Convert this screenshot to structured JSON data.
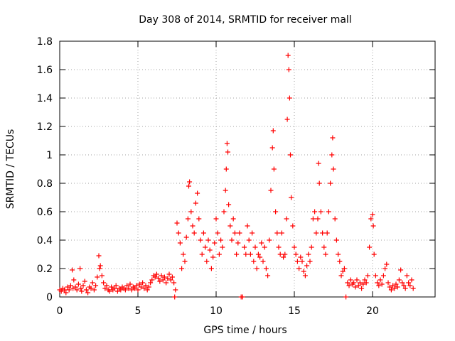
{
  "chart_data": {
    "type": "scatter",
    "title": "Day 308 of 2014, SRMTID for receiver mall",
    "xlabel": "GPS time / hours",
    "ylabel": "SRMTID / TECUs",
    "xlim": [
      0,
      24
    ],
    "ylim": [
      0,
      1.8
    ],
    "xticks": [
      0,
      5,
      10,
      15,
      20
    ],
    "xtick_labels": [
      "0",
      "5",
      "10",
      "15",
      "20"
    ],
    "yticks": [
      0,
      0.2,
      0.4,
      0.6,
      0.8,
      1.0,
      1.2,
      1.4,
      1.6,
      1.8
    ],
    "ytick_labels": [
      "0",
      "0.2",
      "0.4",
      "0.6",
      "0.8",
      "1",
      "1.2",
      "1.4",
      "1.6",
      "1.8"
    ],
    "grid": true,
    "marker": "plus",
    "colors": {
      "series": "#ff0000",
      "axis": "#000000",
      "grid": "#a0a0a0"
    },
    "series": [
      {
        "name": "SRMTID",
        "points": [
          [
            0.0,
            0.05
          ],
          [
            0.1,
            0.04
          ],
          [
            0.2,
            0.06
          ],
          [
            0.3,
            0.05
          ],
          [
            0.4,
            0.03
          ],
          [
            0.5,
            0.07
          ],
          [
            0.6,
            0.05
          ],
          [
            0.7,
            0.08
          ],
          [
            0.8,
            0.19
          ],
          [
            0.85,
            0.06
          ],
          [
            0.9,
            0.12
          ],
          [
            1.0,
            0.07
          ],
          [
            1.1,
            0.05
          ],
          [
            1.2,
            0.09
          ],
          [
            1.3,
            0.2
          ],
          [
            1.35,
            0.06
          ],
          [
            1.4,
            0.04
          ],
          [
            1.5,
            0.08
          ],
          [
            1.6,
            0.11
          ],
          [
            1.7,
            0.05
          ],
          [
            1.8,
            0.03
          ],
          [
            1.9,
            0.07
          ],
          [
            2.0,
            0.06
          ],
          [
            2.1,
            0.1
          ],
          [
            2.2,
            0.05
          ],
          [
            2.3,
            0.08
          ],
          [
            2.4,
            0.14
          ],
          [
            2.5,
            0.29
          ],
          [
            2.55,
            0.2
          ],
          [
            2.6,
            0.22
          ],
          [
            2.7,
            0.15
          ],
          [
            2.8,
            0.1
          ],
          [
            2.9,
            0.06
          ],
          [
            3.0,
            0.08
          ],
          [
            3.1,
            0.05
          ],
          [
            3.2,
            0.04
          ],
          [
            3.3,
            0.07
          ],
          [
            3.4,
            0.05
          ],
          [
            3.5,
            0.06
          ],
          [
            3.6,
            0.08
          ],
          [
            3.7,
            0.04
          ],
          [
            3.8,
            0.06
          ],
          [
            3.9,
            0.05
          ],
          [
            4.0,
            0.07
          ],
          [
            4.1,
            0.06
          ],
          [
            4.2,
            0.05
          ],
          [
            4.3,
            0.08
          ],
          [
            4.4,
            0.06
          ],
          [
            4.5,
            0.09
          ],
          [
            4.6,
            0.05
          ],
          [
            4.7,
            0.07
          ],
          [
            4.8,
            0.06
          ],
          [
            4.9,
            0.08
          ],
          [
            5.0,
            0.05
          ],
          [
            5.1,
            0.09
          ],
          [
            5.2,
            0.07
          ],
          [
            5.3,
            0.1
          ],
          [
            5.4,
            0.06
          ],
          [
            5.5,
            0.08
          ],
          [
            5.6,
            0.05
          ],
          [
            5.7,
            0.07
          ],
          [
            5.8,
            0.1
          ],
          [
            5.9,
            0.12
          ],
          [
            6.0,
            0.15
          ],
          [
            6.1,
            0.14
          ],
          [
            6.2,
            0.16
          ],
          [
            6.3,
            0.13
          ],
          [
            6.4,
            0.11
          ],
          [
            6.5,
            0.15
          ],
          [
            6.6,
            0.12
          ],
          [
            6.7,
            0.14
          ],
          [
            6.8,
            0.1
          ],
          [
            6.9,
            0.13
          ],
          [
            7.0,
            0.16
          ],
          [
            7.1,
            0.12
          ],
          [
            7.2,
            0.14
          ],
          [
            7.3,
            0.1
          ],
          [
            7.35,
            0.0
          ],
          [
            7.4,
            0.05
          ],
          [
            7.5,
            0.52
          ],
          [
            7.6,
            0.45
          ],
          [
            7.7,
            0.38
          ],
          [
            7.8,
            0.2
          ],
          [
            7.9,
            0.3
          ],
          [
            8.0,
            0.25
          ],
          [
            8.1,
            0.42
          ],
          [
            8.2,
            0.55
          ],
          [
            8.25,
            0.78
          ],
          [
            8.3,
            0.81
          ],
          [
            8.4,
            0.6
          ],
          [
            8.5,
            0.5
          ],
          [
            8.6,
            0.45
          ],
          [
            8.7,
            0.66
          ],
          [
            8.8,
            0.73
          ],
          [
            8.9,
            0.55
          ],
          [
            9.0,
            0.4
          ],
          [
            9.1,
            0.3
          ],
          [
            9.2,
            0.45
          ],
          [
            9.3,
            0.35
          ],
          [
            9.4,
            0.25
          ],
          [
            9.5,
            0.4
          ],
          [
            9.6,
            0.33
          ],
          [
            9.7,
            0.2
          ],
          [
            9.8,
            0.28
          ],
          [
            9.9,
            0.38
          ],
          [
            10.0,
            0.55
          ],
          [
            10.1,
            0.45
          ],
          [
            10.2,
            0.3
          ],
          [
            10.3,
            0.4
          ],
          [
            10.4,
            0.35
          ],
          [
            10.5,
            0.6
          ],
          [
            10.6,
            0.75
          ],
          [
            10.65,
            0.9
          ],
          [
            10.7,
            1.08
          ],
          [
            10.75,
            1.02
          ],
          [
            10.8,
            0.65
          ],
          [
            10.9,
            0.5
          ],
          [
            11.0,
            0.4
          ],
          [
            11.1,
            0.55
          ],
          [
            11.2,
            0.45
          ],
          [
            11.3,
            0.3
          ],
          [
            11.4,
            0.38
          ],
          [
            11.5,
            0.45
          ],
          [
            11.6,
            0.0
          ],
          [
            11.7,
            0.0
          ],
          [
            11.8,
            0.35
          ],
          [
            11.9,
            0.3
          ],
          [
            12.0,
            0.5
          ],
          [
            12.1,
            0.4
          ],
          [
            12.2,
            0.3
          ],
          [
            12.3,
            0.45
          ],
          [
            12.4,
            0.25
          ],
          [
            12.5,
            0.35
          ],
          [
            12.6,
            0.2
          ],
          [
            12.7,
            0.3
          ],
          [
            12.8,
            0.28
          ],
          [
            12.9,
            0.38
          ],
          [
            13.0,
            0.25
          ],
          [
            13.1,
            0.35
          ],
          [
            13.2,
            0.2
          ],
          [
            13.3,
            0.15
          ],
          [
            13.4,
            0.4
          ],
          [
            13.5,
            0.75
          ],
          [
            13.6,
            1.05
          ],
          [
            13.65,
            1.17
          ],
          [
            13.7,
            0.9
          ],
          [
            13.8,
            0.6
          ],
          [
            13.9,
            0.45
          ],
          [
            14.0,
            0.35
          ],
          [
            14.1,
            0.3
          ],
          [
            14.2,
            0.45
          ],
          [
            14.3,
            0.28
          ],
          [
            14.4,
            0.3
          ],
          [
            14.5,
            0.55
          ],
          [
            14.55,
            1.25
          ],
          [
            14.6,
            1.7
          ],
          [
            14.65,
            1.6
          ],
          [
            14.7,
            1.4
          ],
          [
            14.75,
            1.0
          ],
          [
            14.8,
            0.7
          ],
          [
            14.9,
            0.5
          ],
          [
            15.0,
            0.35
          ],
          [
            15.1,
            0.3
          ],
          [
            15.2,
            0.25
          ],
          [
            15.3,
            0.2
          ],
          [
            15.4,
            0.28
          ],
          [
            15.5,
            0.25
          ],
          [
            15.6,
            0.18
          ],
          [
            15.7,
            0.15
          ],
          [
            15.8,
            0.22
          ],
          [
            15.9,
            0.3
          ],
          [
            16.0,
            0.25
          ],
          [
            16.1,
            0.35
          ],
          [
            16.2,
            0.55
          ],
          [
            16.3,
            0.6
          ],
          [
            16.4,
            0.45
          ],
          [
            16.5,
            0.55
          ],
          [
            16.55,
            0.94
          ],
          [
            16.6,
            0.8
          ],
          [
            16.7,
            0.6
          ],
          [
            16.8,
            0.45
          ],
          [
            16.9,
            0.35
          ],
          [
            17.0,
            0.3
          ],
          [
            17.1,
            0.45
          ],
          [
            17.2,
            0.6
          ],
          [
            17.3,
            0.8
          ],
          [
            17.4,
            1.0
          ],
          [
            17.45,
            1.12
          ],
          [
            17.5,
            0.9
          ],
          [
            17.6,
            0.55
          ],
          [
            17.7,
            0.4
          ],
          [
            17.8,
            0.3
          ],
          [
            17.9,
            0.25
          ],
          [
            18.0,
            0.15
          ],
          [
            18.1,
            0.18
          ],
          [
            18.2,
            0.2
          ],
          [
            18.3,
            0.0
          ],
          [
            18.4,
            0.1
          ],
          [
            18.5,
            0.08
          ],
          [
            18.6,
            0.12
          ],
          [
            18.7,
            0.09
          ],
          [
            18.8,
            0.1
          ],
          [
            18.9,
            0.07
          ],
          [
            19.0,
            0.12
          ],
          [
            19.1,
            0.08
          ],
          [
            19.2,
            0.1
          ],
          [
            19.3,
            0.06
          ],
          [
            19.4,
            0.09
          ],
          [
            19.5,
            0.12
          ],
          [
            19.6,
            0.1
          ],
          [
            19.7,
            0.15
          ],
          [
            19.8,
            0.35
          ],
          [
            19.9,
            0.55
          ],
          [
            20.0,
            0.58
          ],
          [
            20.05,
            0.5
          ],
          [
            20.1,
            0.3
          ],
          [
            20.2,
            0.15
          ],
          [
            20.3,
            0.1
          ],
          [
            20.4,
            0.08
          ],
          [
            20.5,
            0.12
          ],
          [
            20.6,
            0.09
          ],
          [
            20.7,
            0.15
          ],
          [
            20.8,
            0.2
          ],
          [
            20.9,
            0.23
          ],
          [
            21.0,
            0.1
          ],
          [
            21.1,
            0.07
          ],
          [
            21.2,
            0.05
          ],
          [
            21.3,
            0.08
          ],
          [
            21.4,
            0.06
          ],
          [
            21.5,
            0.09
          ],
          [
            21.6,
            0.07
          ],
          [
            21.7,
            0.12
          ],
          [
            21.8,
            0.19
          ],
          [
            21.9,
            0.1
          ],
          [
            22.0,
            0.08
          ],
          [
            22.1,
            0.06
          ],
          [
            22.2,
            0.15
          ],
          [
            22.3,
            0.1
          ],
          [
            22.4,
            0.08
          ],
          [
            22.5,
            0.12
          ],
          [
            22.6,
            0.06
          ]
        ]
      }
    ]
  }
}
